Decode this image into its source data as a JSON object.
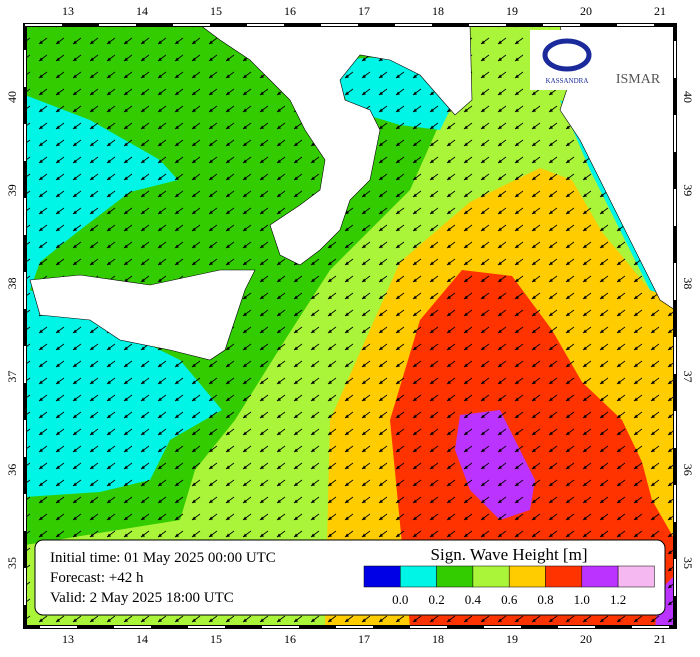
{
  "axes": {
    "longitude_ticks": [
      13,
      14,
      15,
      16,
      17,
      18,
      19,
      20,
      21
    ],
    "latitude_ticks": [
      35,
      36,
      37,
      38,
      39,
      40
    ]
  },
  "logos": [
    "KASSANDRA",
    "ISMAR"
  ],
  "info": {
    "initial_time": "Initial time: 01 May 2025 00:00 UTC",
    "forecast": "Forecast: +42 h",
    "valid": "Valid:  2 May 2025 18:00 UTC"
  },
  "legend": {
    "title": "Sign. Wave Height [m]",
    "colors": [
      "#0000e6",
      "#00f5e6",
      "#33cc00",
      "#aaf53a",
      "#ffcc00",
      "#ff3300",
      "#bb33ff",
      "#f5b8f0"
    ],
    "labels": [
      "0.0",
      "0.2",
      "0.4",
      "0.6",
      "0.8",
      "1.0",
      "1.2"
    ]
  }
}
